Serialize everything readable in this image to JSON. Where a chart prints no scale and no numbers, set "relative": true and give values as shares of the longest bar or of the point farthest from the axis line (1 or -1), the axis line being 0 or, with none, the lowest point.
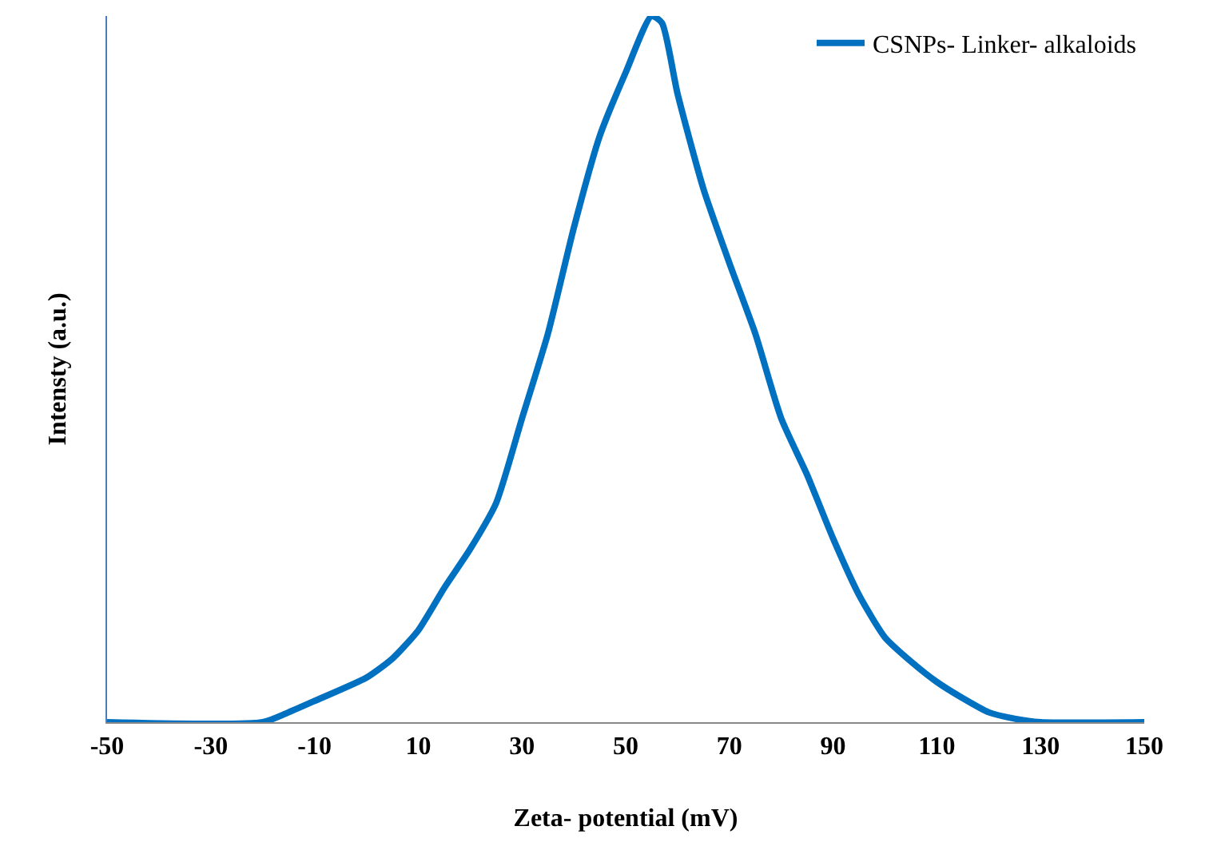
{
  "chart_data": {
    "type": "line",
    "xlabel": "Zeta- potential (mV)",
    "ylabel": "Intensty (a.u.)",
    "relative": true,
    "xlim": [
      -50,
      150
    ],
    "xticks": [
      -50,
      -30,
      -10,
      10,
      30,
      50,
      70,
      90,
      110,
      130,
      150
    ],
    "grid": false,
    "legend": "top right",
    "marker": "none",
    "line_style": "solid",
    "series": [
      {
        "name": "CSNPs- Linker- alkaloids",
        "color": "#0070c0",
        "x": [
          -50,
          -20,
          -15,
          -10,
          0,
          5,
          10,
          15,
          20,
          25,
          30,
          35,
          40,
          45,
          50,
          55,
          57,
          60,
          65,
          70,
          75,
          80,
          85,
          90,
          95,
          100,
          105,
          110,
          115,
          120,
          125,
          130,
          150
        ],
        "values": [
          0,
          0,
          0.014,
          0.03,
          0.063,
          0.09,
          0.13,
          0.19,
          0.245,
          0.31,
          0.43,
          0.55,
          0.7,
          0.83,
          0.92,
          1,
          0.99,
          0.89,
          0.755,
          0.65,
          0.55,
          0.43,
          0.35,
          0.26,
          0.18,
          0.12,
          0.086,
          0.057,
          0.034,
          0.014,
          0.005,
          0,
          0
        ]
      }
    ]
  }
}
